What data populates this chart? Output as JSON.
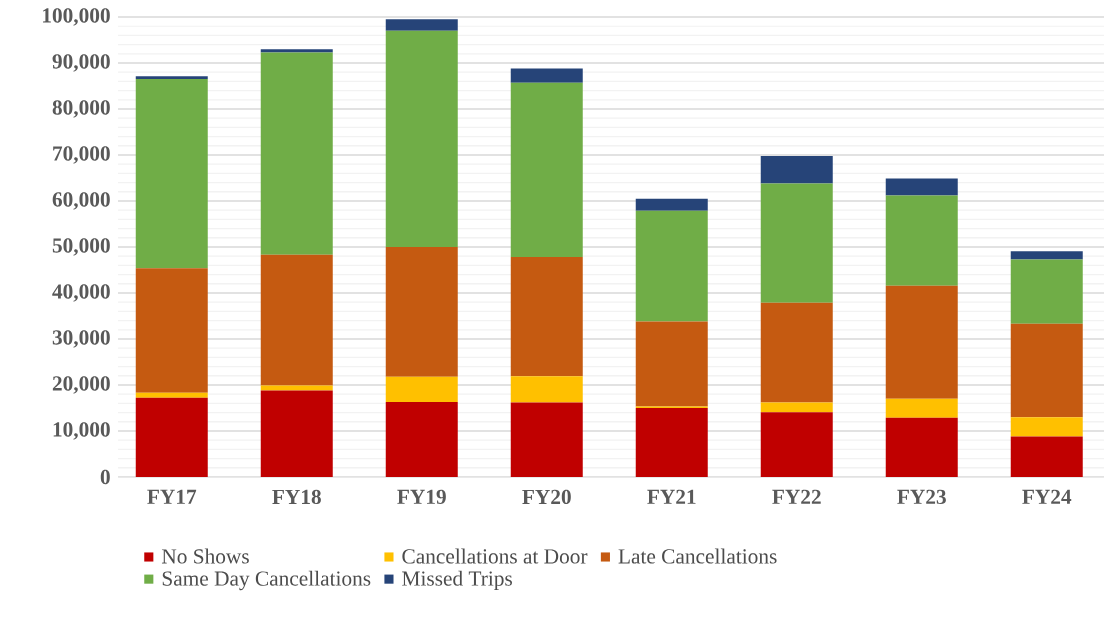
{
  "chart_data": {
    "type": "bar",
    "stacked": true,
    "categories": [
      "FY17",
      "FY18",
      "FY19",
      "FY20",
      "FY21",
      "FY22",
      "FY23",
      "FY24"
    ],
    "series": [
      {
        "name": "No Shows",
        "color": "#c00000",
        "values": [
          17200,
          18800,
          16300,
          16200,
          15000,
          14100,
          12900,
          8800
        ]
      },
      {
        "name": "Cancellations at Door",
        "color": "#ffc000",
        "values": [
          1100,
          1100,
          5500,
          5700,
          300,
          2100,
          4100,
          4200
        ]
      },
      {
        "name": "Late Cancellations",
        "color": "#c55a11",
        "values": [
          27100,
          28400,
          28200,
          25900,
          18500,
          21700,
          24600,
          20300
        ]
      },
      {
        "name": "Same Day Cancellations",
        "color": "#70ad47",
        "values": [
          41100,
          44000,
          47000,
          37900,
          24100,
          25900,
          19600,
          14000
        ]
      },
      {
        "name": "Missed Trips",
        "color": "#264478",
        "values": [
          600,
          700,
          2500,
          3100,
          2600,
          6000,
          3700,
          1800
        ]
      }
    ],
    "ylim": [
      0,
      100000
    ],
    "yticks": [
      {
        "value": 0,
        "label": "0"
      },
      {
        "value": 10000,
        "label": "10,000"
      },
      {
        "value": 20000,
        "label": "20,000"
      },
      {
        "value": 30000,
        "label": "30,000"
      },
      {
        "value": 40000,
        "label": "40,000"
      },
      {
        "value": 50000,
        "label": "50,000"
      },
      {
        "value": 60000,
        "label": "60,000"
      },
      {
        "value": 70000,
        "label": "70,000"
      },
      {
        "value": 80000,
        "label": "80,000"
      },
      {
        "value": 90000,
        "label": "90,000"
      },
      {
        "value": 100000,
        "label": "100,000"
      }
    ],
    "grid": "y",
    "legend": "bottom"
  }
}
